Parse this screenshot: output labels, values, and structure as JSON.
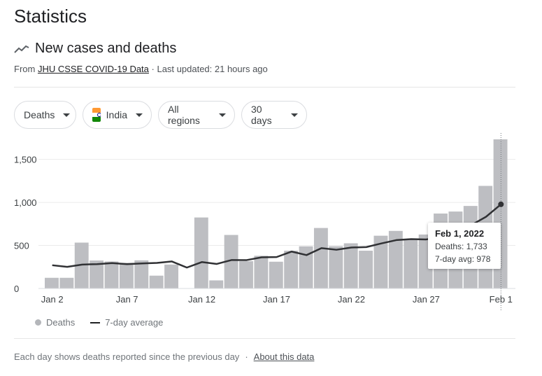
{
  "header": {
    "title": "Statistics"
  },
  "section": {
    "title": "New cases and deaths",
    "source_prefix": "From",
    "source_link": "JHU CSSE COVID-19 Data",
    "updated": "· Last updated: 21 hours ago"
  },
  "filters": {
    "metric": "Deaths",
    "country": "India",
    "region": "All regions",
    "range": "30 days"
  },
  "chart_data": {
    "type": "bar",
    "title": "New cases and deaths",
    "categories": [
      "Jan 2",
      "Jan 3",
      "Jan 4",
      "Jan 5",
      "Jan 6",
      "Jan 7",
      "Jan 8",
      "Jan 9",
      "Jan 10",
      "Jan 11",
      "Jan 12",
      "Jan 13",
      "Jan 14",
      "Jan 15",
      "Jan 16",
      "Jan 17",
      "Jan 18",
      "Jan 19",
      "Jan 20",
      "Jan 21",
      "Jan 22",
      "Jan 23",
      "Jan 24",
      "Jan 25",
      "Jan 26",
      "Jan 27",
      "Jan 28",
      "Jan 29",
      "Jan 30",
      "Jan 31",
      "Feb 1"
    ],
    "series": [
      {
        "name": "Deaths",
        "type": "bar",
        "values": [
          124,
          124,
          533,
          325,
          314,
          298,
          327,
          149,
          278,
          0,
          825,
          94,
          622,
          317,
          380,
          311,
          439,
          490,
          703,
          491,
          525,
          439,
          613,
          669,
          575,
          627,
          871,
          894,
          959,
          1192,
          1733
        ]
      },
      {
        "name": "7-day average",
        "type": "line",
        "values": [
          270,
          251,
          278,
          283,
          295,
          283,
          291,
          297,
          314,
          243,
          307,
          285,
          331,
          330,
          362,
          365,
          429,
          388,
          469,
          450,
          476,
          481,
          523,
          562,
          574,
          570,
          596,
          654,
          735,
          833,
          978
        ]
      }
    ],
    "ylim": [
      0,
      1733
    ],
    "yticks": [
      0,
      500,
      1000,
      1500
    ],
    "ytick_labels": [
      "0",
      "500",
      "1,000",
      "1,500"
    ],
    "xtick_labels": [
      "Jan 2",
      "Jan 7",
      "Jan 12",
      "Jan 17",
      "Jan 22",
      "Jan 27",
      "Feb 1"
    ],
    "xlabel": "",
    "ylabel": ""
  },
  "tooltip": {
    "date": "Feb 1, 2022",
    "deaths_label": "Deaths: 1,733",
    "avg_label": "7-day avg: 978"
  },
  "legend": {
    "bars": "Deaths",
    "line": "7-day average"
  },
  "footer": {
    "note": "Each day shows deaths reported since the previous day",
    "separator": "·",
    "link": "About this data"
  },
  "colors": {
    "bar": "#bdbec2",
    "line": "#303134",
    "grid": "#ebebeb"
  }
}
